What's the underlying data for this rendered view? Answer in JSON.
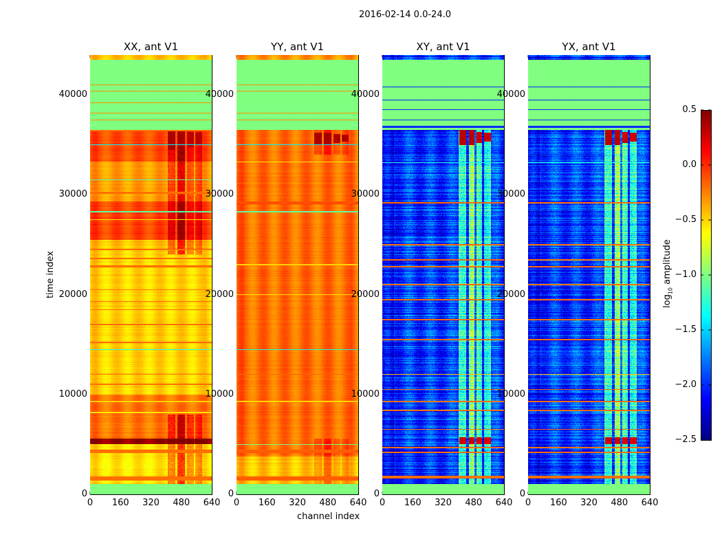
{
  "chart_data": {
    "type": "heatmap",
    "title": "2016-02-14 0.0-24.0",
    "xlabel": "channel index",
    "ylabel": "time index",
    "xlim": [
      0,
      640
    ],
    "ylim": [
      0,
      44000
    ],
    "xticks": [
      "0",
      "160",
      "320",
      "480",
      "640"
    ],
    "yticks": [
      "0",
      "10000",
      "20000",
      "30000",
      "40000"
    ],
    "colormap": "jet",
    "colorbar": {
      "label_main": "log",
      "label_sub": "10",
      "label_rest": " amplitude",
      "vmin": -2.5,
      "vmax": 0.5,
      "ticks": [
        "0.5",
        "0.0",
        "−0.5",
        "−1.0",
        "−1.5",
        "−2.0",
        "−2.5"
      ],
      "tick_values": [
        0.5,
        0.0,
        -0.5,
        -1.0,
        -1.5,
        -2.0,
        -2.5
      ]
    },
    "panels": [
      {
        "title": "XX, ant V1",
        "base": -0.55,
        "noise": 0.06,
        "ripple": 0.08,
        "segments": [
          [
            0,
            1000,
            -1.0
          ],
          [
            1000,
            5000,
            -0.55
          ],
          [
            5000,
            5600,
            0.42
          ],
          [
            5600,
            10000,
            -0.22
          ],
          [
            10000,
            24500,
            -0.5
          ],
          [
            24500,
            25500,
            -0.45
          ],
          [
            25500,
            29300,
            -0.08
          ],
          [
            29300,
            33300,
            -0.35
          ],
          [
            33300,
            36500,
            -0.1
          ],
          [
            36500,
            43500,
            -1.0
          ],
          [
            43500,
            44000,
            -0.45
          ]
        ],
        "rfi": [
          [
            410,
            450,
            0.35
          ],
          [
            460,
            500,
            0.45
          ],
          [
            510,
            545,
            0.3
          ],
          [
            555,
            590,
            0.25
          ]
        ],
        "rfi_ranges": [
          [
            1000,
            8000
          ],
          [
            24000,
            36500
          ]
        ],
        "blocks": [
          [
            410,
            450,
            34500,
            36500,
            0.45
          ],
          [
            460,
            500,
            34500,
            36500,
            0.45
          ],
          [
            510,
            545,
            34800,
            36300,
            0.4
          ],
          [
            555,
            590,
            35000,
            36200,
            0.4
          ]
        ],
        "lines": [
          [
            1600,
            -0.2,
            400
          ],
          [
            4300,
            -0.2,
            300
          ],
          [
            8200,
            -0.55,
            150
          ],
          [
            9300,
            -0.5,
            150
          ],
          [
            11000,
            -0.2,
            150
          ],
          [
            12000,
            -0.2,
            100
          ],
          [
            14500,
            -1.3,
            100
          ],
          [
            15200,
            -0.2,
            150
          ],
          [
            17000,
            -0.2,
            100
          ],
          [
            18500,
            -0.2,
            100
          ],
          [
            19300,
            -0.2,
            100
          ],
          [
            20500,
            -0.2,
            100
          ],
          [
            22800,
            -0.2,
            200
          ],
          [
            23600,
            -0.2,
            150
          ],
          [
            24500,
            -0.2,
            150
          ],
          [
            27500,
            -0.55,
            100
          ],
          [
            28300,
            -1.1,
            120
          ],
          [
            30200,
            -0.2,
            200
          ],
          [
            31500,
            -1.1,
            100
          ],
          [
            35000,
            -1.4,
            80
          ],
          [
            36400,
            -0.2,
            150
          ],
          [
            37500,
            -0.3,
            120
          ],
          [
            38200,
            -0.3,
            100
          ],
          [
            39200,
            -0.3,
            80
          ],
          [
            40400,
            -0.3,
            100
          ],
          [
            41000,
            -0.3,
            80
          ]
        ]
      },
      {
        "title": "YY, ant V1",
        "base": -0.22,
        "noise": 0.05,
        "ripple": 0.1,
        "segments": [
          [
            0,
            1000,
            -1.0
          ],
          [
            1000,
            3800,
            -0.45
          ],
          [
            3800,
            5000,
            -0.22
          ],
          [
            5000,
            36500,
            -0.2
          ],
          [
            36500,
            43500,
            -1.0
          ],
          [
            43500,
            44000,
            -0.3
          ]
        ],
        "rfi": [
          [
            410,
            450,
            0.2
          ],
          [
            460,
            500,
            0.2
          ],
          [
            510,
            545,
            0.15
          ],
          [
            555,
            590,
            0.12
          ]
        ],
        "rfi_ranges": [
          [
            1000,
            5600
          ],
          [
            34000,
            36500
          ]
        ],
        "blocks": [
          [
            410,
            450,
            35000,
            36200,
            0.45
          ],
          [
            460,
            500,
            35000,
            36200,
            0.45
          ],
          [
            510,
            545,
            35200,
            36100,
            0.42
          ],
          [
            555,
            590,
            35300,
            36000,
            0.42
          ]
        ],
        "lines": [
          [
            1600,
            -0.15,
            400
          ],
          [
            4300,
            -0.15,
            300
          ],
          [
            5000,
            -1.0,
            100
          ],
          [
            9300,
            -0.5,
            150
          ],
          [
            12000,
            -0.15,
            100
          ],
          [
            14500,
            -1.3,
            100
          ],
          [
            20000,
            -0.5,
            60
          ],
          [
            23000,
            -0.5,
            80
          ],
          [
            28300,
            -1.1,
            120
          ],
          [
            29200,
            -0.1,
            300
          ],
          [
            33300,
            -0.5,
            100
          ],
          [
            35000,
            -1.4,
            80
          ],
          [
            37500,
            -0.3,
            120
          ],
          [
            38200,
            -0.3,
            100
          ],
          [
            40400,
            -0.3,
            100
          ],
          [
            41000,
            -0.3,
            80
          ]
        ]
      },
      {
        "title": "XY, ant V1",
        "base": -2.0,
        "noise": 0.3,
        "ripple": 0.15,
        "segments": [
          [
            0,
            1000,
            -1.0
          ],
          [
            1000,
            5000,
            -2.0
          ],
          [
            5000,
            36500,
            -1.95
          ],
          [
            36500,
            43500,
            -1.0
          ],
          [
            43500,
            44000,
            -2.0
          ]
        ],
        "rfi": [
          [
            400,
            440,
            0.85
          ],
          [
            455,
            485,
            0.9
          ],
          [
            495,
            525,
            0.8
          ],
          [
            535,
            570,
            0.75
          ]
        ],
        "rfi_ranges": [
          [
            0,
            36500
          ]
        ],
        "blocks": [
          [
            405,
            440,
            35000,
            36500,
            0.4
          ],
          [
            455,
            485,
            35000,
            36500,
            0.4
          ],
          [
            495,
            525,
            35200,
            36300,
            0.35
          ],
          [
            535,
            570,
            35300,
            36200,
            0.35
          ],
          [
            405,
            440,
            5000,
            5700,
            0.35
          ],
          [
            455,
            485,
            5000,
            5700,
            0.35
          ],
          [
            495,
            525,
            5000,
            5700,
            0.3
          ],
          [
            535,
            570,
            5000,
            5700,
            0.3
          ]
        ],
        "lines": [
          [
            1700,
            -0.2,
            300
          ],
          [
            4200,
            -0.2,
            200
          ],
          [
            4700,
            -0.2,
            150
          ],
          [
            6500,
            -0.2,
            100
          ],
          [
            8400,
            -0.2,
            100
          ],
          [
            9300,
            -0.2,
            100
          ],
          [
            10500,
            -0.2,
            100
          ],
          [
            12000,
            -0.4,
            80
          ],
          [
            15500,
            -0.2,
            100
          ],
          [
            17500,
            -0.2,
            100
          ],
          [
            19500,
            -0.2,
            100
          ],
          [
            21000,
            -0.2,
            100
          ],
          [
            22800,
            -0.2,
            150
          ],
          [
            23500,
            -0.2,
            150
          ],
          [
            25000,
            -0.2,
            100
          ],
          [
            29200,
            -0.2,
            100
          ],
          [
            33200,
            -1.3,
            80
          ],
          [
            36800,
            -2.0,
            200
          ],
          [
            37500,
            -2.0,
            100
          ],
          [
            38500,
            -2.0,
            80
          ],
          [
            39500,
            -2.0,
            80
          ],
          [
            40800,
            -2.0,
            100
          ]
        ]
      },
      {
        "title": "YX, ant V1",
        "base": -2.0,
        "noise": 0.3,
        "ripple": 0.15,
        "segments": [
          [
            0,
            1000,
            -1.0
          ],
          [
            1000,
            5000,
            -2.0
          ],
          [
            5000,
            36500,
            -1.95
          ],
          [
            36500,
            43500,
            -1.0
          ],
          [
            43500,
            44000,
            -2.0
          ]
        ],
        "rfi": [
          [
            400,
            440,
            0.85
          ],
          [
            455,
            485,
            0.9
          ],
          [
            495,
            525,
            0.8
          ],
          [
            535,
            570,
            0.75
          ]
        ],
        "rfi_ranges": [
          [
            0,
            36500
          ]
        ],
        "blocks": [
          [
            405,
            440,
            35000,
            36500,
            0.4
          ],
          [
            455,
            485,
            35000,
            36500,
            0.4
          ],
          [
            495,
            525,
            35200,
            36300,
            0.35
          ],
          [
            535,
            570,
            35300,
            36200,
            0.35
          ],
          [
            405,
            440,
            5000,
            5700,
            0.35
          ],
          [
            455,
            485,
            5000,
            5700,
            0.35
          ],
          [
            495,
            525,
            5000,
            5700,
            0.3
          ],
          [
            535,
            570,
            5000,
            5700,
            0.3
          ]
        ],
        "lines": [
          [
            1700,
            -0.2,
            300
          ],
          [
            4200,
            -0.2,
            200
          ],
          [
            4700,
            -0.2,
            150
          ],
          [
            6500,
            -0.2,
            100
          ],
          [
            8400,
            -0.2,
            100
          ],
          [
            9300,
            -0.2,
            100
          ],
          [
            10500,
            -0.2,
            100
          ],
          [
            12000,
            -0.4,
            80
          ],
          [
            15500,
            -0.2,
            100
          ],
          [
            17500,
            -0.2,
            100
          ],
          [
            19500,
            -0.2,
            100
          ],
          [
            21000,
            -0.2,
            100
          ],
          [
            22800,
            -0.2,
            150
          ],
          [
            23500,
            -0.2,
            150
          ],
          [
            25000,
            -0.2,
            100
          ],
          [
            29200,
            -0.2,
            100
          ],
          [
            33200,
            -1.3,
            80
          ],
          [
            36800,
            -2.0,
            200
          ],
          [
            37500,
            -2.0,
            100
          ],
          [
            38500,
            -2.0,
            80
          ],
          [
            39500,
            -2.0,
            80
          ],
          [
            40800,
            -2.0,
            100
          ]
        ]
      }
    ]
  }
}
